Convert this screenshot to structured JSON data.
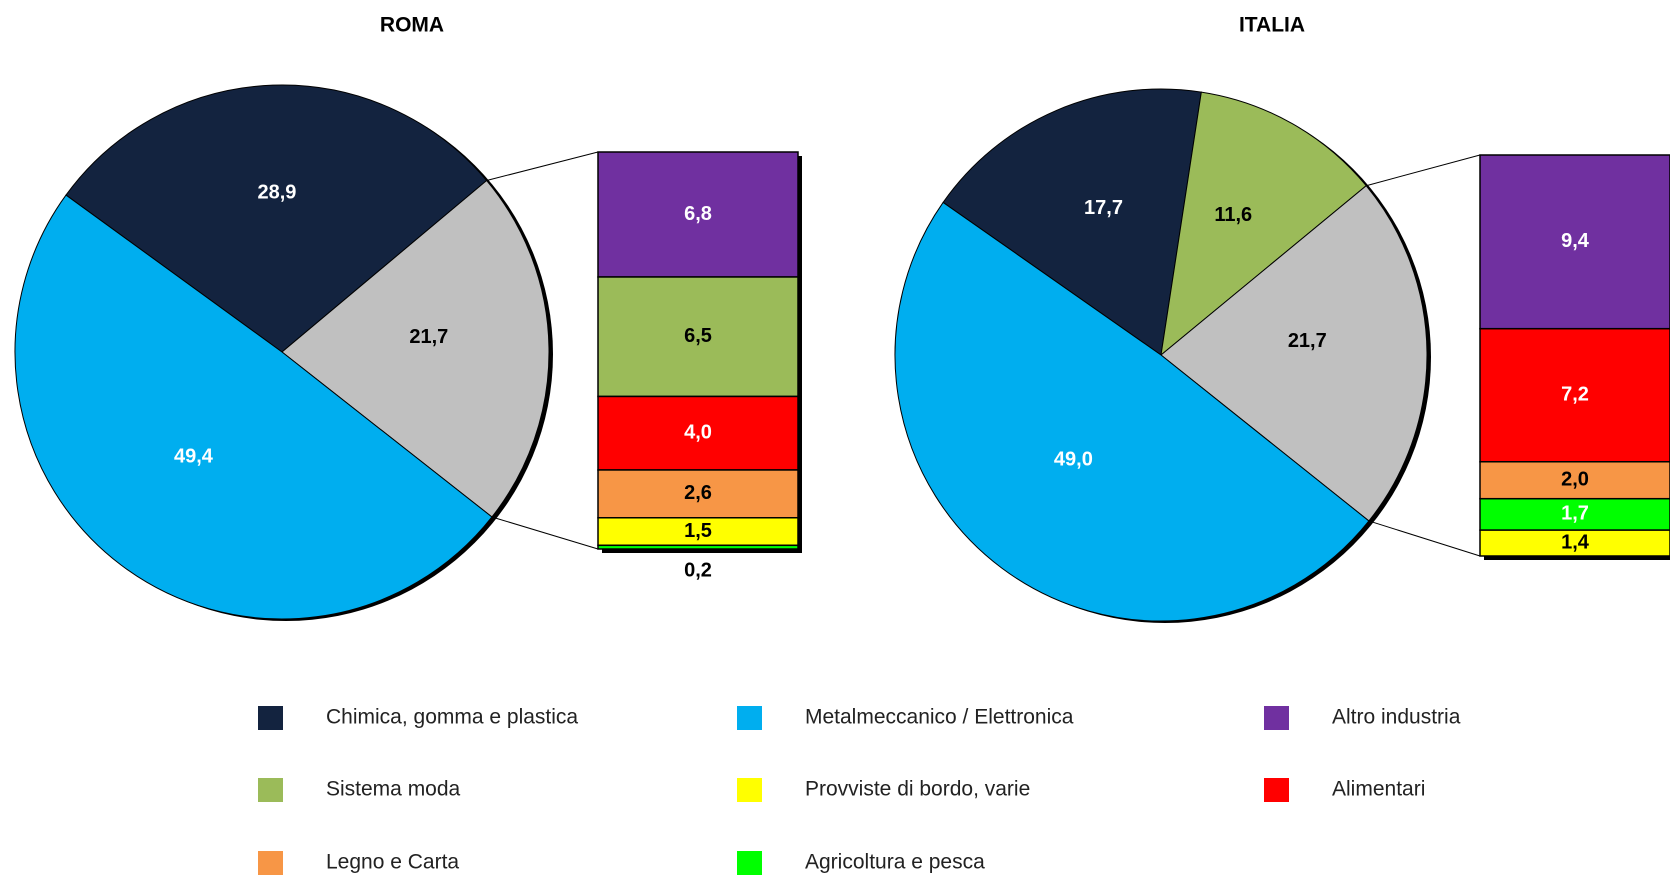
{
  "legend": [
    {
      "name": "Chimica, gomma e plastica",
      "color": "#13233f"
    },
    {
      "name": "Metalmeccanico / Elettronica",
      "color": "#00aeef"
    },
    {
      "name": "Altro industria",
      "color": "#7030a0"
    },
    {
      "name": "Sistema moda",
      "color": "#9bbb59"
    },
    {
      "name": "Provviste di bordo, varie",
      "color": "#ffff00"
    },
    {
      "name": "Alimentari",
      "color": "#ff0000"
    },
    {
      "name": "Legno e Carta",
      "color": "#f79646"
    },
    {
      "name": "Agricoltura e pesca",
      "color": "#00ff00"
    }
  ],
  "chart_data": [
    {
      "type": "bar-of-pie",
      "title": "ROMA",
      "pie": {
        "values": [
          28.9,
          21.7,
          49.4
        ],
        "value_labels": [
          "28,9",
          "21,7",
          "49,4"
        ],
        "colors": [
          "#13233f",
          "#c0c0c0",
          "#00aeef"
        ]
      },
      "bar": {
        "values": [
          6.8,
          6.5,
          4.0,
          2.6,
          1.5,
          0.2
        ],
        "value_labels": [
          "6,8",
          "6,5",
          "4,0",
          "2,6",
          "1,5",
          "0,2"
        ],
        "colors": [
          "#7030a0",
          "#9bbb59",
          "#ff0000",
          "#f79646",
          "#ffff00",
          "#00ff00"
        ]
      }
    },
    {
      "type": "bar-of-pie",
      "title": "ITALIA",
      "pie": {
        "values": [
          17.7,
          11.6,
          21.7,
          49.0
        ],
        "value_labels": [
          "17,7",
          "11,6",
          "21,7",
          "49,0"
        ],
        "colors": [
          "#13233f",
          "#9bbb59",
          "#c0c0c0",
          "#00aeef"
        ]
      },
      "bar": {
        "values": [
          9.4,
          7.2,
          2.0,
          1.7,
          1.4
        ],
        "value_labels": [
          "9,4",
          "7,2",
          "2,0",
          "1,7",
          "1,4"
        ],
        "colors": [
          "#7030a0",
          "#ff0000",
          "#f79646",
          "#00ff00",
          "#ffff00"
        ]
      }
    }
  ]
}
